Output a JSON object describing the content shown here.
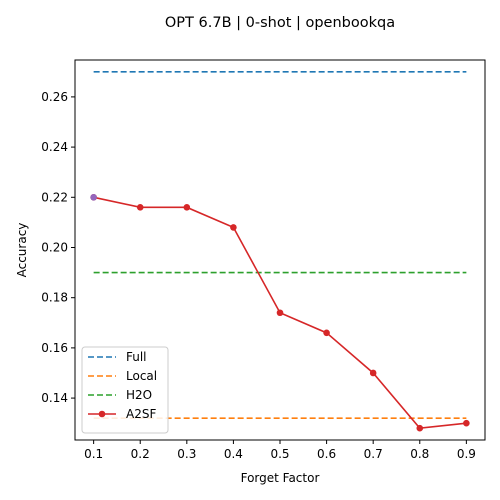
{
  "chart_data": {
    "type": "line",
    "title": "OPT 6.7B | 0-shot | openbookqa",
    "xlabel": "Forget Factor",
    "ylabel": "Accuracy",
    "x": [
      0.1,
      0.2,
      0.3,
      0.4,
      0.5,
      0.6,
      0.7,
      0.8,
      0.9
    ],
    "xticks": [
      "0.1",
      "0.2",
      "0.3",
      "0.4",
      "0.5",
      "0.6",
      "0.7",
      "0.8",
      "0.9"
    ],
    "yticks": [
      "0.14",
      "0.16",
      "0.18",
      "0.20",
      "0.22",
      "0.24",
      "0.26"
    ],
    "xlim": [
      0.06,
      0.94
    ],
    "ylim": [
      0.1233,
      0.2747
    ],
    "grid": false,
    "legend_position": "lower-left",
    "series": [
      {
        "name": "Full",
        "style": "dashed",
        "color": "#1f77b4",
        "values": [
          0.27,
          0.27,
          0.27,
          0.27,
          0.27,
          0.27,
          0.27,
          0.27,
          0.27
        ]
      },
      {
        "name": "Local",
        "style": "dashed",
        "color": "#ff7f0e",
        "values": [
          0.132,
          0.132,
          0.132,
          0.132,
          0.132,
          0.132,
          0.132,
          0.132,
          0.132
        ]
      },
      {
        "name": "H2O",
        "style": "dashed",
        "color": "#2ca02c",
        "values": [
          0.19,
          0.19,
          0.19,
          0.19,
          0.19,
          0.19,
          0.19,
          0.19,
          0.19
        ]
      },
      {
        "name": "A2SF",
        "style": "solid-marker",
        "color": "#d62728",
        "values": [
          0.22,
          0.216,
          0.216,
          0.208,
          0.174,
          0.166,
          0.15,
          0.128,
          0.13
        ]
      }
    ],
    "highlight_point": {
      "x": 0.1,
      "y": 0.22,
      "color": "#9467bd"
    }
  }
}
